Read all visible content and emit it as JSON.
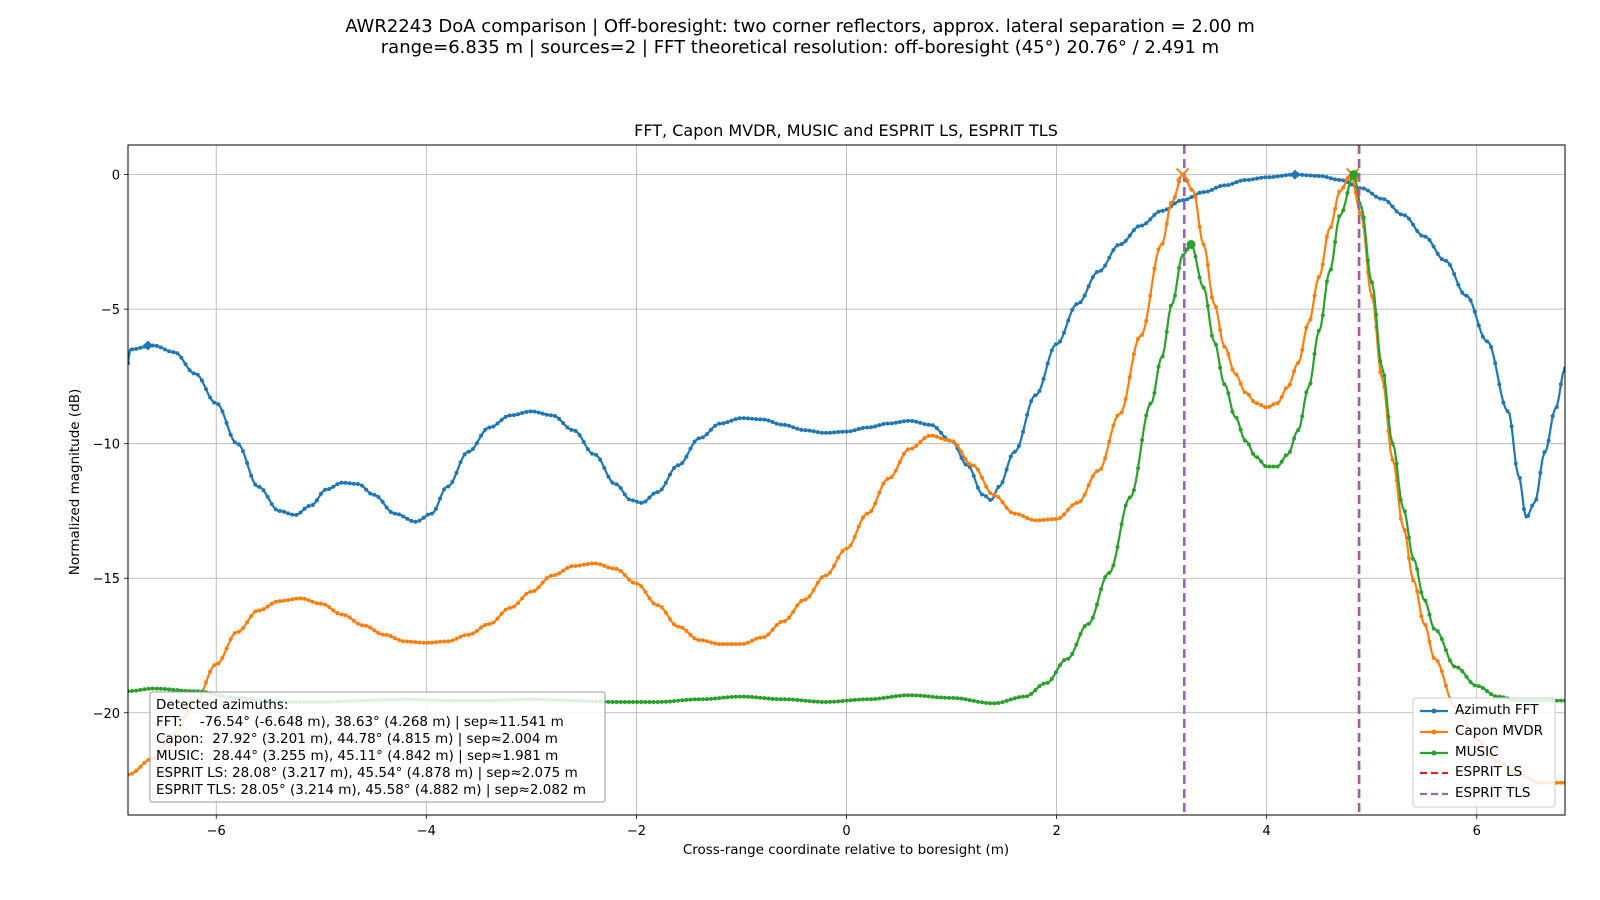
{
  "figure": {
    "suptitle_line1": "AWR2243 DoA comparison | Off-boresight: two corner reflectors, approx. lateral separation = 2.00 m",
    "suptitle_line2": "range=6.835 m | sources=2 | FFT theoretical resolution: off-boresight (45°) 20.76° / 2.491 m"
  },
  "chart_data": {
    "type": "line",
    "title": "FFT, Capon MVDR, MUSIC and ESPRIT LS, ESPRIT TLS",
    "xlabel": "Cross-range coordinate relative to boresight (m)",
    "ylabel": "Normalized magnitude (dB)",
    "xlim": [
      -6.84,
      6.84
    ],
    "ylim": [
      -23.8,
      1.1
    ],
    "xticks": [
      -6,
      -4,
      -2,
      0,
      2,
      4,
      6
    ],
    "xtick_labels": [
      "−6",
      "−4",
      "−2",
      "0",
      "2",
      "4",
      "6"
    ],
    "yticks": [
      0,
      -5,
      -10,
      -15,
      -20
    ],
    "ytick_labels": [
      "0",
      "−5",
      "−10",
      "−15",
      "−20"
    ],
    "grid": true,
    "legend_position": "lower-right",
    "series": [
      {
        "name": "Azimuth FFT",
        "color": "#1f77b4",
        "marker": "dot",
        "points": [
          [
            -6.84,
            -7.0
          ],
          [
            -6.82,
            -6.5
          ],
          [
            -6.6,
            -6.35
          ],
          [
            -6.4,
            -6.6
          ],
          [
            -6.2,
            -7.4
          ],
          [
            -6.0,
            -8.5
          ],
          [
            -5.8,
            -10.0
          ],
          [
            -5.6,
            -11.6
          ],
          [
            -5.4,
            -12.5
          ],
          [
            -5.25,
            -12.65
          ],
          [
            -5.1,
            -12.3
          ],
          [
            -4.95,
            -11.7
          ],
          [
            -4.8,
            -11.45
          ],
          [
            -4.65,
            -11.5
          ],
          [
            -4.5,
            -11.9
          ],
          [
            -4.3,
            -12.6
          ],
          [
            -4.1,
            -12.9
          ],
          [
            -3.95,
            -12.6
          ],
          [
            -3.8,
            -11.6
          ],
          [
            -3.6,
            -10.3
          ],
          [
            -3.4,
            -9.4
          ],
          [
            -3.2,
            -8.95
          ],
          [
            -3.0,
            -8.8
          ],
          [
            -2.8,
            -8.95
          ],
          [
            -2.6,
            -9.5
          ],
          [
            -2.4,
            -10.4
          ],
          [
            -2.2,
            -11.5
          ],
          [
            -2.05,
            -12.1
          ],
          [
            -1.95,
            -12.2
          ],
          [
            -1.8,
            -11.8
          ],
          [
            -1.6,
            -10.8
          ],
          [
            -1.4,
            -9.8
          ],
          [
            -1.2,
            -9.25
          ],
          [
            -1.0,
            -9.05
          ],
          [
            -0.8,
            -9.1
          ],
          [
            -0.6,
            -9.3
          ],
          [
            -0.4,
            -9.5
          ],
          [
            -0.2,
            -9.6
          ],
          [
            0.0,
            -9.55
          ],
          [
            0.2,
            -9.4
          ],
          [
            0.4,
            -9.25
          ],
          [
            0.6,
            -9.15
          ],
          [
            0.8,
            -9.3
          ],
          [
            1.0,
            -9.9
          ],
          [
            1.15,
            -10.8
          ],
          [
            1.3,
            -11.9
          ],
          [
            1.38,
            -12.1
          ],
          [
            1.45,
            -11.6
          ],
          [
            1.6,
            -10.3
          ],
          [
            1.8,
            -8.2
          ],
          [
            2.0,
            -6.3
          ],
          [
            2.2,
            -4.8
          ],
          [
            2.4,
            -3.6
          ],
          [
            2.6,
            -2.6
          ],
          [
            2.8,
            -1.9
          ],
          [
            3.0,
            -1.35
          ],
          [
            3.2,
            -0.95
          ],
          [
            3.4,
            -0.65
          ],
          [
            3.6,
            -0.4
          ],
          [
            3.8,
            -0.2
          ],
          [
            4.0,
            -0.1
          ],
          [
            4.27,
            0.0
          ],
          [
            4.5,
            -0.05
          ],
          [
            4.7,
            -0.2
          ],
          [
            4.9,
            -0.5
          ],
          [
            5.1,
            -0.9
          ],
          [
            5.3,
            -1.5
          ],
          [
            5.5,
            -2.3
          ],
          [
            5.7,
            -3.2
          ],
          [
            5.9,
            -4.5
          ],
          [
            6.1,
            -6.2
          ],
          [
            6.3,
            -8.8
          ],
          [
            6.4,
            -11.2
          ],
          [
            6.47,
            -12.75
          ],
          [
            6.55,
            -12.2
          ],
          [
            6.65,
            -10.3
          ],
          [
            6.75,
            -8.7
          ],
          [
            6.84,
            -7.2
          ]
        ]
      },
      {
        "name": "Capon MVDR",
        "color": "#ff7f0e",
        "marker": "dot",
        "points": [
          [
            -6.84,
            -22.3
          ],
          [
            -6.6,
            -21.7
          ],
          [
            -6.4,
            -20.8
          ],
          [
            -6.2,
            -19.6
          ],
          [
            -6.0,
            -18.2
          ],
          [
            -5.8,
            -17.0
          ],
          [
            -5.6,
            -16.2
          ],
          [
            -5.4,
            -15.85
          ],
          [
            -5.2,
            -15.75
          ],
          [
            -5.0,
            -15.95
          ],
          [
            -4.8,
            -16.35
          ],
          [
            -4.6,
            -16.75
          ],
          [
            -4.4,
            -17.1
          ],
          [
            -4.2,
            -17.35
          ],
          [
            -4.0,
            -17.4
          ],
          [
            -3.8,
            -17.35
          ],
          [
            -3.6,
            -17.1
          ],
          [
            -3.4,
            -16.7
          ],
          [
            -3.2,
            -16.1
          ],
          [
            -3.0,
            -15.5
          ],
          [
            -2.8,
            -14.9
          ],
          [
            -2.6,
            -14.55
          ],
          [
            -2.4,
            -14.45
          ],
          [
            -2.2,
            -14.65
          ],
          [
            -2.0,
            -15.2
          ],
          [
            -1.8,
            -16.0
          ],
          [
            -1.6,
            -16.8
          ],
          [
            -1.4,
            -17.3
          ],
          [
            -1.2,
            -17.45
          ],
          [
            -1.0,
            -17.45
          ],
          [
            -0.8,
            -17.2
          ],
          [
            -0.6,
            -16.6
          ],
          [
            -0.4,
            -15.8
          ],
          [
            -0.2,
            -14.9
          ],
          [
            0.0,
            -13.9
          ],
          [
            0.2,
            -12.6
          ],
          [
            0.4,
            -11.3
          ],
          [
            0.6,
            -10.2
          ],
          [
            0.8,
            -9.7
          ],
          [
            1.0,
            -9.9
          ],
          [
            1.2,
            -10.8
          ],
          [
            1.4,
            -11.9
          ],
          [
            1.6,
            -12.6
          ],
          [
            1.8,
            -12.85
          ],
          [
            2.0,
            -12.8
          ],
          [
            2.2,
            -12.2
          ],
          [
            2.4,
            -11.0
          ],
          [
            2.6,
            -8.9
          ],
          [
            2.8,
            -6.0
          ],
          [
            3.0,
            -2.6
          ],
          [
            3.1,
            -1.0
          ],
          [
            3.2,
            0.0
          ],
          [
            3.3,
            -0.6
          ],
          [
            3.4,
            -2.6
          ],
          [
            3.5,
            -4.8
          ],
          [
            3.6,
            -6.4
          ],
          [
            3.7,
            -7.4
          ],
          [
            3.8,
            -8.1
          ],
          [
            3.9,
            -8.5
          ],
          [
            4.0,
            -8.65
          ],
          [
            4.1,
            -8.5
          ],
          [
            4.2,
            -7.9
          ],
          [
            4.3,
            -7.0
          ],
          [
            4.4,
            -5.5
          ],
          [
            4.5,
            -3.8
          ],
          [
            4.6,
            -2.0
          ],
          [
            4.7,
            -0.6
          ],
          [
            4.8,
            0.0
          ],
          [
            4.9,
            -1.5
          ],
          [
            5.0,
            -4.5
          ],
          [
            5.1,
            -7.6
          ],
          [
            5.2,
            -10.6
          ],
          [
            5.3,
            -13.1
          ],
          [
            5.4,
            -15.1
          ],
          [
            5.5,
            -16.7
          ],
          [
            5.6,
            -18.0
          ],
          [
            5.8,
            -19.8
          ],
          [
            6.0,
            -21.0
          ],
          [
            6.2,
            -21.8
          ],
          [
            6.4,
            -22.3
          ],
          [
            6.6,
            -22.6
          ],
          [
            6.84,
            -22.6
          ]
        ]
      },
      {
        "name": "MUSIC",
        "color": "#2ca02c",
        "marker": "dot",
        "points": [
          [
            -6.84,
            -19.2
          ],
          [
            -6.6,
            -19.1
          ],
          [
            -6.2,
            -19.2
          ],
          [
            -5.8,
            -19.45
          ],
          [
            -5.4,
            -19.6
          ],
          [
            -5.0,
            -19.6
          ],
          [
            -4.6,
            -19.55
          ],
          [
            -4.2,
            -19.5
          ],
          [
            -3.8,
            -19.55
          ],
          [
            -3.4,
            -19.55
          ],
          [
            -3.0,
            -19.5
          ],
          [
            -2.6,
            -19.55
          ],
          [
            -2.2,
            -19.6
          ],
          [
            -1.8,
            -19.6
          ],
          [
            -1.4,
            -19.5
          ],
          [
            -1.0,
            -19.4
          ],
          [
            -0.6,
            -19.5
          ],
          [
            -0.2,
            -19.6
          ],
          [
            0.2,
            -19.5
          ],
          [
            0.6,
            -19.35
          ],
          [
            1.0,
            -19.45
          ],
          [
            1.4,
            -19.65
          ],
          [
            1.7,
            -19.4
          ],
          [
            1.9,
            -18.9
          ],
          [
            2.1,
            -18.0
          ],
          [
            2.3,
            -16.7
          ],
          [
            2.5,
            -14.8
          ],
          [
            2.7,
            -12.0
          ],
          [
            2.9,
            -8.5
          ],
          [
            3.0,
            -6.8
          ],
          [
            3.1,
            -4.8
          ],
          [
            3.2,
            -3.0
          ],
          [
            3.28,
            -2.6
          ],
          [
            3.4,
            -4.2
          ],
          [
            3.5,
            -6.2
          ],
          [
            3.6,
            -7.8
          ],
          [
            3.7,
            -9.0
          ],
          [
            3.8,
            -9.9
          ],
          [
            3.9,
            -10.5
          ],
          [
            4.0,
            -10.85
          ],
          [
            4.1,
            -10.85
          ],
          [
            4.2,
            -10.4
          ],
          [
            4.3,
            -9.5
          ],
          [
            4.4,
            -7.9
          ],
          [
            4.5,
            -5.8
          ],
          [
            4.6,
            -3.6
          ],
          [
            4.7,
            -1.5
          ],
          [
            4.83,
            0.0
          ],
          [
            4.9,
            -1.2
          ],
          [
            5.0,
            -4.0
          ],
          [
            5.1,
            -7.2
          ],
          [
            5.2,
            -10.0
          ],
          [
            5.3,
            -12.4
          ],
          [
            5.4,
            -14.3
          ],
          [
            5.5,
            -15.8
          ],
          [
            5.6,
            -16.9
          ],
          [
            5.8,
            -18.3
          ],
          [
            6.0,
            -19.0
          ],
          [
            6.2,
            -19.4
          ],
          [
            6.4,
            -19.55
          ],
          [
            6.84,
            -19.55
          ]
        ]
      }
    ],
    "peak_markers": [
      {
        "series": "Azimuth FFT",
        "symbol": "diamond",
        "points": [
          [
            -6.65,
            -6.35
          ],
          [
            4.27,
            0.0
          ]
        ]
      },
      {
        "series": "Capon MVDR",
        "symbol": "x",
        "points": [
          [
            3.2,
            0.0
          ],
          [
            4.82,
            0.0
          ]
        ]
      },
      {
        "series": "MUSIC",
        "symbol": "dot",
        "points": [
          [
            3.28,
            -2.6
          ],
          [
            4.83,
            0.0
          ]
        ]
      }
    ],
    "vlines": [
      {
        "name": "ESPRIT LS",
        "color": "#d62728",
        "style": "dashed",
        "x": [
          3.217,
          4.878
        ]
      },
      {
        "name": "ESPRIT TLS",
        "color": "#9467bd",
        "style": "dashed",
        "x": [
          3.214,
          4.882
        ]
      }
    ],
    "legend": [
      "Azimuth FFT",
      "Capon MVDR",
      "MUSIC",
      "ESPRIT LS",
      "ESPRIT TLS"
    ],
    "annotation": {
      "position": "lower-left",
      "lines": [
        "Detected azimuths:",
        "FFT:    -76.54° (-6.648 m), 38.63° (4.268 m) | sep≈11.541 m",
        "Capon:  27.92° (3.201 m), 44.78° (4.815 m) | sep≈2.004 m",
        "MUSIC:  28.44° (3.255 m), 45.11° (4.842 m) | sep≈1.981 m",
        "ESPRIT LS: 28.08° (3.217 m), 45.54° (4.878 m) | sep≈2.075 m",
        "ESPRIT TLS: 28.05° (3.214 m), 45.58° (4.882 m) | sep≈2.082 m"
      ]
    }
  }
}
